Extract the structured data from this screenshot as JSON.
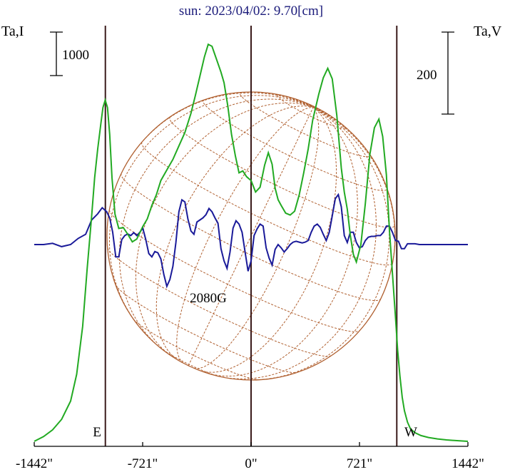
{
  "title": "sun: 2023/04/02: 9.70[cm]",
  "left_axis_label": "Ta,I",
  "right_axis_label": "Ta,V",
  "left_scale_bar_label": "1000",
  "right_scale_bar_label": "200",
  "east_label": "E",
  "west_label": "W",
  "source_label": "2080G",
  "colors": {
    "intensity": "#22aa22",
    "polarization": "#1a1a99",
    "disk": "#b06030",
    "limb_lines": "#3a1a1a",
    "axis": "#000000",
    "title": "#1a1a7a"
  },
  "chart_data": {
    "type": "line",
    "title": "sun: 2023/04/02: 9.70[cm]",
    "x_unit": "arcsec",
    "xlim": [
      -1442,
      1442
    ],
    "x_ticks": [
      -1442,
      -721,
      0,
      721,
      1442
    ],
    "x_tick_labels": [
      "-1442\"",
      "-721\"",
      "0\"",
      "721\"",
      "1442\""
    ],
    "limb_x": [
      -969,
      969
    ],
    "center_x": 0,
    "series": [
      {
        "name": "Ta,I",
        "axis": "left",
        "x": [
          -1442,
          -1380,
          -1320,
          -1260,
          -1200,
          -1160,
          -1120,
          -1090,
          -1060,
          -1040,
          -1020,
          -1000,
          -985,
          -970,
          -955,
          -940,
          -925,
          -905,
          -880,
          -850,
          -820,
          -790,
          -760,
          -720,
          -690,
          -660,
          -630,
          -600,
          -560,
          -520,
          -480,
          -440,
          -400,
          -370,
          -340,
          -310,
          -285,
          -260,
          -240,
          -220,
          -200,
          -180,
          -155,
          -130,
          -105,
          -80,
          -55,
          -30,
          0,
          30,
          60,
          90,
          115,
          140,
          160,
          180,
          200,
          230,
          260,
          290,
          320,
          350,
          380,
          410,
          450,
          480,
          510,
          540,
          570,
          600,
          620,
          640,
          660,
          680,
          700,
          730,
          760,
          790,
          820,
          850,
          875,
          900,
          920,
          940,
          960,
          975,
          990,
          1005,
          1020,
          1040,
          1060,
          1090,
          1130,
          1180,
          1240,
          1300,
          1360,
          1442
        ],
        "y": [
          0,
          50,
          120,
          230,
          420,
          700,
          1200,
          1800,
          2350,
          2750,
          3050,
          3300,
          3480,
          3560,
          3480,
          3200,
          2750,
          2370,
          2220,
          2230,
          2160,
          2080,
          2110,
          2240,
          2320,
          2460,
          2570,
          2720,
          2830,
          2940,
          3080,
          3220,
          3420,
          3610,
          3810,
          4010,
          4140,
          4120,
          4030,
          3940,
          3850,
          3740,
          3500,
          3200,
          2980,
          2800,
          2820,
          2760,
          2720,
          2600,
          2650,
          2880,
          3010,
          2890,
          2640,
          2520,
          2460,
          2380,
          2360,
          2400,
          2570,
          2800,
          3050,
          3350,
          3620,
          3790,
          3890,
          3780,
          3400,
          2850,
          2600,
          2420,
          2150,
          1950,
          1870,
          2050,
          2480,
          2990,
          3270,
          3360,
          3180,
          2780,
          2200,
          1750,
          1300,
          950,
          680,
          460,
          320,
          200,
          130,
          90,
          60,
          40,
          25,
          15,
          8,
          0
        ],
        "color": "#22aa22"
      },
      {
        "name": "Ta,V",
        "axis": "right",
        "x": [
          -1442,
          -1380,
          -1320,
          -1260,
          -1200,
          -1150,
          -1100,
          -1060,
          -1020,
          -990,
          -960,
          -940,
          -920,
          -900,
          -880,
          -860,
          -840,
          -820,
          -800,
          -780,
          -760,
          -740,
          -720,
          -700,
          -680,
          -660,
          -640,
          -620,
          -600,
          -580,
          -560,
          -540,
          -520,
          -500,
          -480,
          -460,
          -440,
          -420,
          -400,
          -380,
          -360,
          -340,
          -320,
          -300,
          -280,
          -260,
          -240,
          -220,
          -200,
          -180,
          -160,
          -140,
          -120,
          -100,
          -80,
          -60,
          -40,
          -20,
          0,
          20,
          40,
          60,
          80,
          100,
          120,
          140,
          160,
          180,
          200,
          220,
          240,
          260,
          280,
          300,
          320,
          340,
          360,
          380,
          400,
          420,
          440,
          460,
          480,
          500,
          520,
          540,
          560,
          580,
          600,
          620,
          640,
          660,
          680,
          700,
          720,
          740,
          760,
          780,
          800,
          820,
          840,
          860,
          880,
          900,
          920,
          940,
          960,
          980,
          1000,
          1020,
          1040,
          1060,
          1090,
          1120,
          1160,
          1200,
          1260,
          1320,
          1380,
          1442
        ],
        "y": [
          0,
          0,
          3,
          -5,
          0,
          15,
          25,
          60,
          75,
          90,
          80,
          65,
          30,
          -30,
          -30,
          12,
          22,
          26,
          22,
          29,
          22,
          30,
          40,
          12,
          -22,
          -30,
          -17,
          -20,
          -35,
          -73,
          -102,
          -85,
          -53,
          5,
          80,
          109,
          104,
          62,
          33,
          25,
          55,
          60,
          65,
          73,
          88,
          80,
          65,
          52,
          -10,
          -40,
          -58,
          -18,
          40,
          58,
          50,
          30,
          -18,
          -65,
          -40,
          22,
          38,
          50,
          45,
          -8,
          -33,
          -50,
          -12,
          0,
          -8,
          -18,
          -10,
          0,
          6,
          8,
          6,
          4,
          6,
          10,
          30,
          45,
          50,
          42,
          25,
          10,
          30,
          70,
          112,
          122,
          92,
          22,
          5,
          30,
          30,
          5,
          -8,
          -5,
          10,
          18,
          20,
          20,
          22,
          22,
          30,
          45,
          45,
          30,
          10,
          8,
          -10,
          -10,
          2,
          2,
          2,
          0,
          0,
          0,
          0,
          0,
          0,
          0
        ],
        "color": "#1a1a99"
      }
    ],
    "scale_bars": [
      {
        "axis": "left",
        "value": 1000,
        "label": "1000"
      },
      {
        "axis": "right",
        "value": 200,
        "label": "200"
      }
    ],
    "annotations": [
      {
        "text": "2080G",
        "x": -300
      },
      {
        "text": "E",
        "x": -1140
      },
      {
        "text": "W",
        "x": 1115
      }
    ],
    "grid": false,
    "legend": "none"
  }
}
